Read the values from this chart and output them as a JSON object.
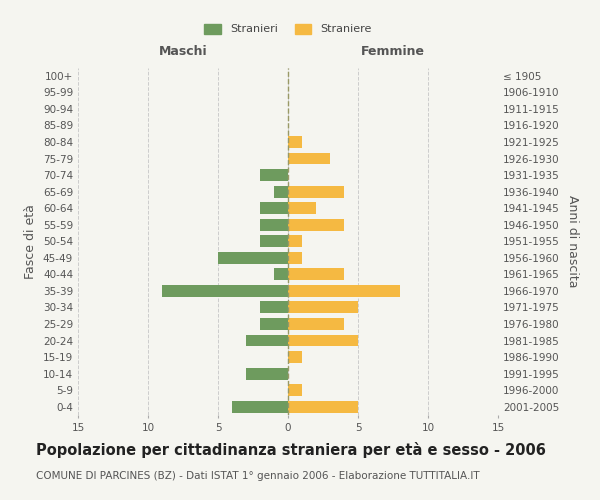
{
  "age_groups": [
    "0-4",
    "5-9",
    "10-14",
    "15-19",
    "20-24",
    "25-29",
    "30-34",
    "35-39",
    "40-44",
    "45-49",
    "50-54",
    "55-59",
    "60-64",
    "65-69",
    "70-74",
    "75-79",
    "80-84",
    "85-89",
    "90-94",
    "95-99",
    "100+"
  ],
  "birth_years": [
    "2001-2005",
    "1996-2000",
    "1991-1995",
    "1986-1990",
    "1981-1985",
    "1976-1980",
    "1971-1975",
    "1966-1970",
    "1961-1965",
    "1956-1960",
    "1951-1955",
    "1946-1950",
    "1941-1945",
    "1936-1940",
    "1931-1935",
    "1926-1930",
    "1921-1925",
    "1916-1920",
    "1911-1915",
    "1906-1910",
    "≤ 1905"
  ],
  "males": [
    4,
    0,
    3,
    0,
    3,
    2,
    2,
    9,
    1,
    5,
    2,
    2,
    2,
    1,
    2,
    0,
    0,
    0,
    0,
    0,
    0
  ],
  "females": [
    5,
    1,
    0,
    1,
    5,
    4,
    5,
    8,
    4,
    1,
    1,
    4,
    2,
    4,
    0,
    3,
    1,
    0,
    0,
    0,
    0
  ],
  "male_color": "#6e9b5e",
  "female_color": "#f5b942",
  "background_color": "#f5f5f0",
  "grid_color": "#cccccc",
  "title": "Popolazione per cittadinanza straniera per età e sesso - 2006",
  "subtitle": "COMUNE DI PARCINES (BZ) - Dati ISTAT 1° gennaio 2006 - Elaborazione TUTTITALIA.IT",
  "xlabel_left": "Maschi",
  "xlabel_right": "Femmine",
  "ylabel_left": "Fasce di età",
  "ylabel_right": "Anni di nascita",
  "legend_male": "Stranieri",
  "legend_female": "Straniere",
  "xlim": 15,
  "title_fontsize": 10.5,
  "subtitle_fontsize": 7.5,
  "tick_fontsize": 7.5,
  "label_fontsize": 9
}
